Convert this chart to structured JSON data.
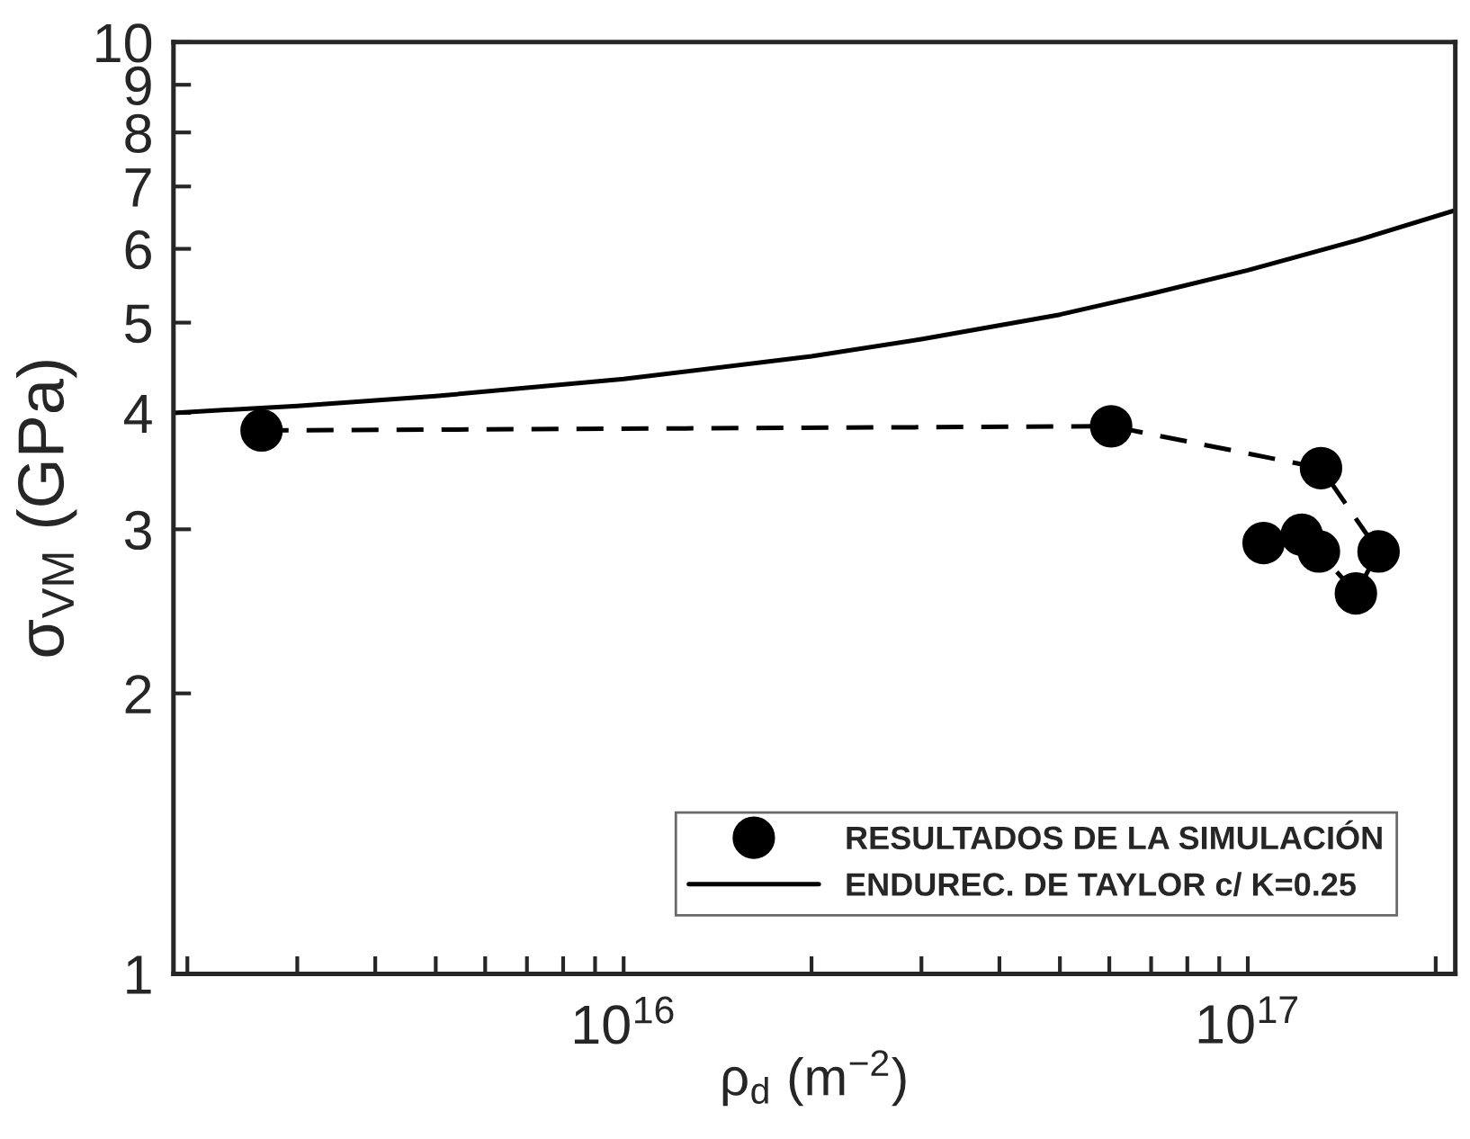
{
  "chart_data": {
    "type": "line",
    "xlabel": "ρ$_{d}$ (m$^{−2}$)",
    "ylabel": "σ$_{VM}$ (GPa)",
    "log": "xy",
    "xlim": [
      1900000000000000.0,
      2.15e+17
    ],
    "ylim": [
      1,
      10
    ],
    "xticks": [
      {
        "value": 2000000000000000.0,
        "label": null
      },
      {
        "value": 3000000000000000.0,
        "label": null
      },
      {
        "value": 4000000000000000.0,
        "label": null
      },
      {
        "value": 5000000000000000.0,
        "label": null
      },
      {
        "value": 6000000000000000.0,
        "label": null
      },
      {
        "value": 7000000000000000.0,
        "label": null
      },
      {
        "value": 8000000000000000.0,
        "label": null
      },
      {
        "value": 9000000000000000.0,
        "label": null
      },
      {
        "value": 1e+16,
        "label": "10$^{16}$"
      },
      {
        "value": 2e+16,
        "label": null
      },
      {
        "value": 3e+16,
        "label": null
      },
      {
        "value": 4e+16,
        "label": null
      },
      {
        "value": 5e+16,
        "label": null
      },
      {
        "value": 6e+16,
        "label": null
      },
      {
        "value": 7e+16,
        "label": null
      },
      {
        "value": 8e+16,
        "label": null
      },
      {
        "value": 9e+16,
        "label": null
      },
      {
        "value": 1e+17,
        "label": "10$^{17}$"
      },
      {
        "value": 2e+17,
        "label": null
      }
    ],
    "yticks": [
      1,
      2,
      3,
      4,
      5,
      6,
      7,
      8,
      9,
      10
    ],
    "grid": false,
    "legend": "bottom right",
    "series": [
      {
        "name": "RESULTADOS DE LA SIMULACIÓN",
        "color": "#000000",
        "marker": "circle",
        "line_style": "dashed",
        "x": [
          2630000000000000.0,
          6.04e+16,
          1.31e+17,
          1.62e+17,
          1.49e+17,
          1.3e+17,
          1.22e+17,
          1.06e+17
        ],
        "values": [
          3.83,
          3.87,
          3.49,
          2.84,
          2.56,
          2.84,
          2.96,
          2.9
        ]
      },
      {
        "name": "ENDUREC. DE TAYLOR c/ K=0.25",
        "color": "#000000",
        "marker": "none",
        "line_style": "solid",
        "x": [
          1900000000000000.0,
          3000000000000000.0,
          5000000000000000.0,
          1e+16,
          2e+16,
          3e+16,
          5e+16,
          7e+16,
          1e+17,
          1.5e+17,
          2.15e+17
        ],
        "values": [
          4.0,
          4.07,
          4.17,
          4.35,
          4.6,
          4.8,
          5.1,
          5.37,
          5.69,
          6.13,
          6.6
        ]
      }
    ]
  }
}
